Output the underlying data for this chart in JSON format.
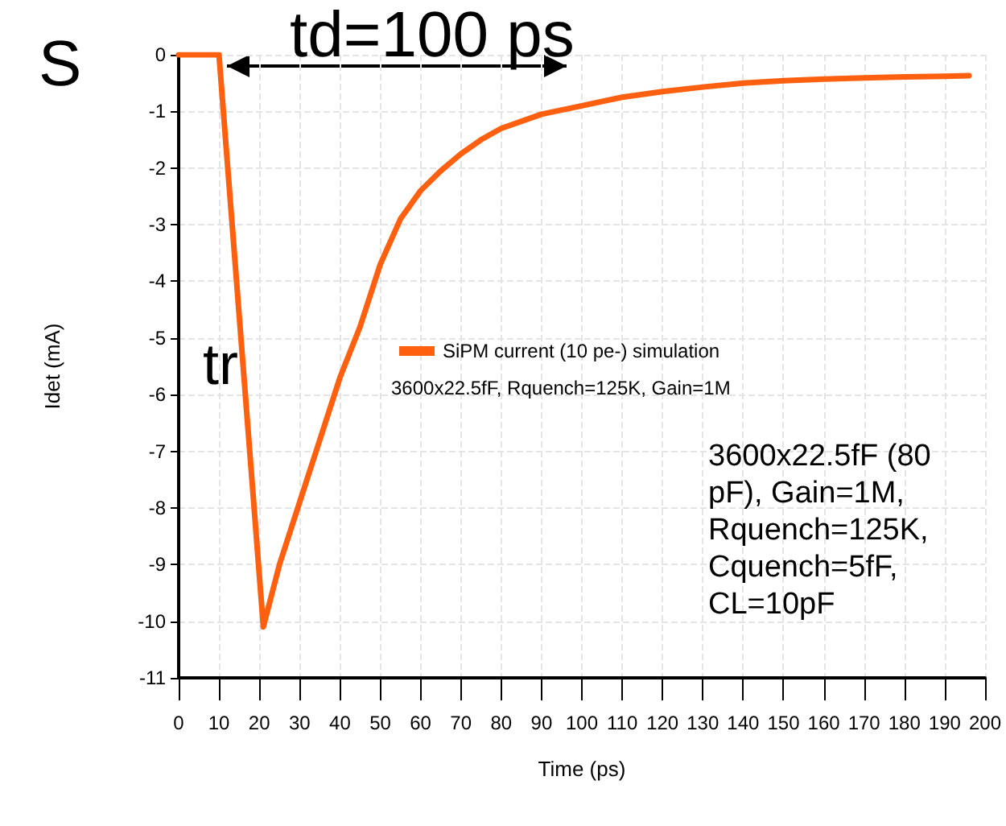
{
  "chart_data": {
    "type": "line",
    "xlabel": "Time (ps)",
    "ylabel": "Idet (mA)",
    "x": [
      0,
      10,
      21,
      25,
      30,
      35,
      40,
      45,
      50,
      55,
      60,
      65,
      70,
      75,
      80,
      90,
      100,
      110,
      120,
      130,
      140,
      150,
      160,
      170,
      180,
      190,
      196
    ],
    "series": [
      {
        "name": "SiPM current (10 pe-) simulation",
        "color": "#ff6010",
        "values": [
          0,
          0,
          -10.1,
          -9.0,
          -7.9,
          -6.8,
          -5.7,
          -4.8,
          -3.7,
          -2.9,
          -2.4,
          -2.05,
          -1.75,
          -1.5,
          -1.3,
          -1.05,
          -0.9,
          -0.75,
          -0.65,
          -0.57,
          -0.5,
          -0.46,
          -0.43,
          -0.41,
          -0.39,
          -0.38,
          -0.37
        ]
      }
    ],
    "xlim": [
      0,
      200
    ],
    "xticks": [
      0,
      10,
      20,
      30,
      40,
      50,
      60,
      70,
      80,
      90,
      100,
      110,
      120,
      130,
      140,
      150,
      160,
      170,
      180,
      190,
      200
    ],
    "ylim": [
      -11,
      0
    ],
    "yticks": [
      -11,
      -10,
      -9,
      -8,
      -7,
      -6,
      -5,
      -4,
      -3,
      -2,
      -1,
      0
    ],
    "grid": true,
    "legend": "center",
    "marker": "none",
    "line_style": "solid",
    "annotations": [
      "S",
      "td=100 ps",
      "tr",
      "3600x22.5fF, Rquench=125K, Gain=1M",
      "3600x22.5fF (80\npF), Gain=1M,\nRquench=125K,\nCquench=5fF,\nCL=10pF"
    ]
  }
}
